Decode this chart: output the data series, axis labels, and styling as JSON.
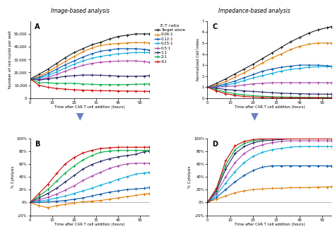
{
  "title_left": "Image-based analysis",
  "title_right": "Impedance-based analysis",
  "legend_title": "E:T ratio",
  "legend_labels": [
    "Target alone",
    "0.06:1",
    "0.12:1",
    "0.25:1",
    "0.5:1",
    "1:1",
    "2:1",
    "4:1"
  ],
  "colors": [
    "#1a1a1a",
    "#e07b00",
    "#0055aa",
    "#00aadd",
    "#aa44aa",
    "#222266",
    "#00aa44",
    "#cc0000"
  ],
  "time_points": [
    0,
    4,
    8,
    12,
    16,
    20,
    24,
    28,
    32,
    36,
    40,
    44,
    48,
    52,
    54
  ],
  "A_data": {
    "Target alone": [
      15000,
      18500,
      22500,
      27000,
      31500,
      35500,
      38500,
      41500,
      43500,
      46000,
      48000,
      49000,
      50000,
      50000,
      50000
    ],
    "0.06:1": [
      15000,
      17000,
      20500,
      24500,
      28500,
      32500,
      36000,
      39000,
      41000,
      42000,
      42500,
      43000,
      43200,
      43200,
      43000
    ],
    "0.12:1": [
      15000,
      16000,
      19000,
      22500,
      26000,
      29000,
      32000,
      34500,
      36500,
      37500,
      38500,
      38500,
      38500,
      38000,
      37500
    ],
    "0.25:1": [
      15000,
      15500,
      17500,
      20500,
      23500,
      26500,
      29000,
      31000,
      32500,
      33500,
      34500,
      35000,
      35500,
      35500,
      35500
    ],
    "0.5:1": [
      15000,
      14500,
      16000,
      18500,
      21000,
      23500,
      25500,
      27000,
      28000,
      28500,
      28800,
      29000,
      29000,
      28500,
      28000
    ],
    "1:1": [
      15000,
      14000,
      15000,
      16000,
      17000,
      17500,
      18000,
      18000,
      17800,
      17500,
      17200,
      17000,
      17000,
      17200,
      17500
    ],
    "2:1": [
      15000,
      12000,
      12000,
      11500,
      11500,
      11500,
      11000,
      10800,
      10500,
      10500,
      10500,
      10500,
      10800,
      11000,
      11000
    ],
    "4:1": [
      15000,
      10000,
      8500,
      7500,
      7000,
      6500,
      6200,
      6000,
      5800,
      5700,
      5600,
      5500,
      5400,
      5300,
      5200
    ]
  },
  "B_data": {
    "0.06:1": [
      0,
      -5,
      -8,
      -5,
      -3,
      -1,
      1,
      2,
      3,
      5,
      7,
      9,
      11,
      13,
      14
    ],
    "0.12:1": [
      0,
      0,
      1,
      2,
      3,
      5,
      7,
      10,
      13,
      16,
      18,
      20,
      21,
      22,
      23
    ],
    "0.25:1": [
      0,
      2,
      4,
      7,
      10,
      14,
      18,
      22,
      27,
      31,
      36,
      40,
      44,
      46,
      47
    ],
    "0.5:1": [
      0,
      4,
      8,
      13,
      19,
      26,
      34,
      41,
      47,
      53,
      57,
      60,
      61,
      61,
      61
    ],
    "1:1": [
      0,
      7,
      14,
      22,
      32,
      42,
      52,
      59,
      64,
      68,
      71,
      73,
      75,
      79,
      80
    ],
    "2:1": [
      0,
      10,
      20,
      33,
      46,
      57,
      66,
      73,
      78,
      80,
      81,
      81,
      81,
      81,
      81
    ],
    "4:1": [
      0,
      14,
      28,
      45,
      60,
      70,
      77,
      81,
      84,
      85,
      86,
      86,
      86,
      86,
      86
    ]
  },
  "C_data": {
    "Target alone": [
      1.0,
      1.35,
      1.75,
      2.2,
      2.65,
      3.1,
      3.6,
      4.1,
      4.6,
      5.1,
      5.5,
      5.9,
      6.2,
      6.4,
      6.5
    ],
    "0.06:1": [
      1.0,
      1.2,
      1.5,
      1.9,
      2.3,
      2.75,
      3.2,
      3.65,
      4.0,
      4.4,
      4.7,
      4.9,
      5.0,
      5.0,
      5.0
    ],
    "0.12:1": [
      1.0,
      1.1,
      1.3,
      1.55,
      1.85,
      2.15,
      2.45,
      2.65,
      2.8,
      2.9,
      3.0,
      3.0,
      3.0,
      2.95,
      2.9
    ],
    "0.25:1": [
      1.0,
      1.05,
      1.15,
      1.35,
      1.6,
      1.85,
      2.05,
      2.25,
      2.45,
      2.6,
      2.7,
      2.8,
      2.85,
      2.85,
      2.85
    ],
    "0.5:1": [
      1.0,
      1.0,
      1.05,
      1.1,
      1.2,
      1.3,
      1.35,
      1.4,
      1.4,
      1.4,
      1.4,
      1.4,
      1.4,
      1.4,
      1.4
    ],
    "1:1": [
      1.0,
      0.9,
      0.78,
      0.72,
      0.66,
      0.6,
      0.55,
      0.5,
      0.45,
      0.42,
      0.4,
      0.38,
      0.37,
      0.36,
      0.36
    ],
    "2:1": [
      1.0,
      0.75,
      0.55,
      0.4,
      0.3,
      0.22,
      0.17,
      0.13,
      0.11,
      0.09,
      0.08,
      0.07,
      0.06,
      0.06,
      0.06
    ],
    "4:1": [
      1.0,
      0.65,
      0.4,
      0.25,
      0.15,
      0.1,
      0.07,
      0.05,
      0.04,
      0.03,
      0.03,
      0.03,
      0.02,
      0.02,
      0.02
    ]
  },
  "D_data": {
    "0.06:1": [
      0,
      5,
      10,
      15,
      18,
      20,
      21,
      22,
      22,
      23,
      23,
      23,
      24,
      24,
      25
    ],
    "0.12:1": [
      0,
      8,
      20,
      32,
      42,
      50,
      55,
      57,
      57,
      57,
      57,
      57,
      57,
      57,
      57
    ],
    "0.25:1": [
      0,
      12,
      30,
      48,
      62,
      72,
      78,
      82,
      84,
      86,
      87,
      87,
      87,
      87,
      87
    ],
    "0.5:1": [
      0,
      15,
      40,
      62,
      76,
      85,
      90,
      93,
      95,
      96,
      96,
      96,
      96,
      96,
      96
    ],
    "1:1": [
      0,
      18,
      52,
      76,
      87,
      93,
      96,
      97,
      98,
      99,
      99,
      99,
      99,
      99,
      99
    ],
    "2:1": [
      0,
      20,
      58,
      82,
      92,
      96,
      98,
      99,
      99,
      99,
      99,
      99,
      99,
      99,
      99
    ],
    "4:1": [
      0,
      22,
      65,
      88,
      95,
      98,
      99,
      99,
      99,
      99,
      99,
      99,
      99,
      99,
      99
    ]
  },
  "A_ylabel": "Number of red nuclei per well",
  "A_ylim": [
    0,
    60000
  ],
  "A_yticks": [
    0,
    10000,
    20000,
    30000,
    40000,
    50000
  ],
  "A_yticklabels": [
    "0",
    "10,000",
    "20,000",
    "30,000",
    "40,000",
    "50,000"
  ],
  "C_ylabel": "Normalized Cell Index",
  "C_ylim": [
    0,
    7
  ],
  "C_yticks": [
    0,
    1,
    2,
    3,
    4,
    5,
    6,
    7
  ],
  "C_yticklabels": [
    "0",
    "1",
    "2",
    "3",
    "4",
    "5",
    "6",
    "7"
  ],
  "BD_ylabel": "% Cytolysis",
  "BD_ylim": [
    -20,
    100
  ],
  "BD_yticks": [
    -20,
    0,
    20,
    40,
    60,
    80,
    100
  ],
  "BD_yticklabels": [
    "-20%",
    "0%",
    "20%",
    "40%",
    "60%",
    "80%",
    "100%"
  ],
  "xlabel": "Time after CAR T cell addition (hours)",
  "xlim": [
    0,
    54
  ],
  "xticks": [
    0,
    10,
    20,
    30,
    40,
    50
  ],
  "arrow_color": "#6b7fc4",
  "background_color": "#ffffff"
}
